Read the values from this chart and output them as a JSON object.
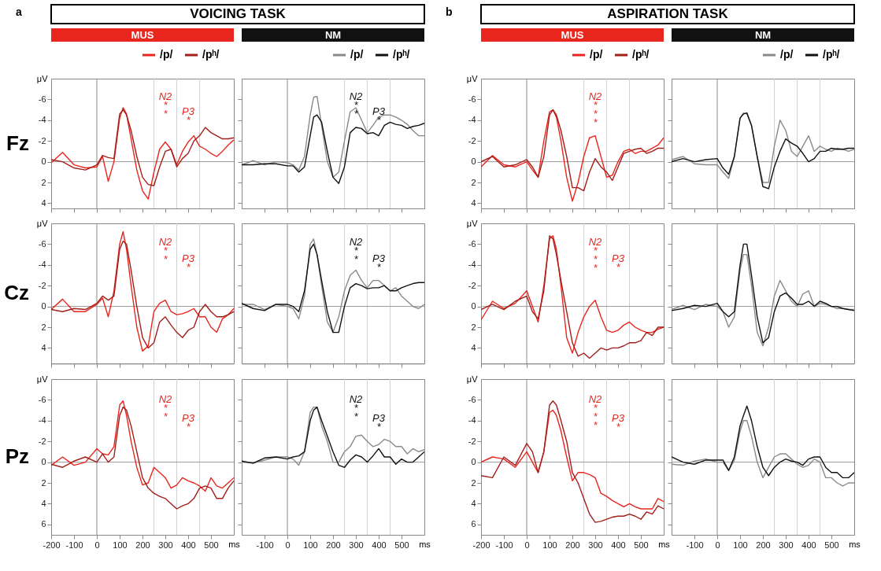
{
  "chart_data": [
    {
      "type": "line",
      "title": "VOICING TASK",
      "subtitle": "MUS",
      "ylabel": "μV",
      "legend": "top right",
      "tick_labels": "y",
      "x": [
        -200,
        -150,
        -100,
        -50,
        0,
        25,
        50,
        75,
        100,
        115,
        130,
        150,
        175,
        200,
        225,
        250,
        275,
        300,
        325,
        350,
        375,
        400,
        425,
        450,
        475,
        500,
        525,
        550,
        575,
        600
      ],
      "xlim": [
        -200,
        600
      ],
      "xticks": [
        -200,
        -100,
        0,
        100,
        200,
        300,
        400,
        500
      ],
      "ylim": [
        4.5,
        -8
      ],
      "yticks": [
        -6,
        -4,
        -2,
        0,
        2,
        4
      ],
      "ref_lines": [
        {
          "axis": "x",
          "value": 0,
          "color": "#8c8c8c"
        },
        {
          "axis": "x",
          "value": 250,
          "color": "#d0d0d0"
        },
        {
          "axis": "x",
          "value": 350,
          "color": "#d0d0d0"
        },
        {
          "axis": "x",
          "value": 450,
          "color": "#d0d0d0"
        },
        {
          "axis": "y",
          "value": 0,
          "color": "#9a9a9a"
        }
      ],
      "annotations": [
        "Fz",
        "a",
        "N2\n*\n*",
        "P3\n*"
      ],
      "series": [
        {
          "name": "/p/",
          "color": "#e8261e",
          "values": [
            0.1,
            -0.9,
            0.3,
            0.6,
            0.5,
            -0.5,
            1.9,
            0.0,
            -4.2,
            -5.2,
            -4.6,
            -2.2,
            0.8,
            2.8,
            3.6,
            1.0,
            -1.2,
            -1.9,
            -1.2,
            0.3,
            -1.0,
            -1.9,
            -2.5,
            -1.5,
            -1.2,
            -0.8,
            -0.5,
            -1.0,
            -1.6,
            -2.1
          ]
        },
        {
          "name": "/pʰ/",
          "color": "#a31f1a",
          "values": [
            -0.2,
            0.0,
            0.6,
            0.8,
            0.3,
            -0.6,
            -0.4,
            -0.3,
            -4.6,
            -5.0,
            -4.5,
            -3.0,
            -0.5,
            1.5,
            2.2,
            2.3,
            0.5,
            -1.0,
            -1.2,
            0.5,
            -0.3,
            -0.8,
            -2.0,
            -2.5,
            -3.3,
            -2.8,
            -2.5,
            -2.2,
            -2.2,
            -2.3
          ]
        }
      ]
    },
    {
      "type": "line",
      "subtitle": "NM",
      "legend": "top right",
      "tick_labels": false,
      "x": [
        -200,
        -150,
        -100,
        -50,
        0,
        25,
        50,
        75,
        100,
        115,
        130,
        150,
        175,
        200,
        225,
        250,
        275,
        300,
        325,
        350,
        375,
        400,
        425,
        450,
        475,
        500,
        525,
        550,
        575,
        600
      ],
      "xlim": [
        -200,
        600
      ],
      "xticks": [
        -100,
        0,
        100,
        200,
        300,
        400,
        500
      ],
      "ylim": [
        4.5,
        -8
      ],
      "yticks": [
        -6,
        -4,
        -2,
        0,
        2,
        4
      ],
      "ref_lines": [
        {
          "axis": "x",
          "value": 0,
          "color": "#8c8c8c"
        },
        {
          "axis": "x",
          "value": 250,
          "color": "#d0d0d0"
        },
        {
          "axis": "x",
          "value": 350,
          "color": "#d0d0d0"
        },
        {
          "axis": "x",
          "value": 450,
          "color": "#d0d0d0"
        },
        {
          "axis": "y",
          "value": 0,
          "color": "#9a9a9a"
        }
      ],
      "annotations": [
        "N2\n*\n*",
        "P3\n*"
      ],
      "series": [
        {
          "name": "/p/",
          "color": "#8a8a8a",
          "values": [
            0.3,
            -0.1,
            0.3,
            0.0,
            0.1,
            0.3,
            0.8,
            -0.5,
            -4.5,
            -6.2,
            -6.3,
            -3.5,
            0.0,
            1.5,
            1.0,
            -2.0,
            -4.8,
            -5.2,
            -4.0,
            -2.8,
            -3.5,
            -4.3,
            -4.5,
            -4.5,
            -4.3,
            -4.0,
            -3.6,
            -3.0,
            -2.5,
            -2.5
          ]
        },
        {
          "name": "/pʰ/",
          "color": "#111111",
          "values": [
            0.3,
            0.3,
            0.2,
            0.2,
            0.4,
            0.4,
            1.0,
            0.5,
            -2.5,
            -4.3,
            -4.5,
            -3.8,
            -1.0,
            1.5,
            2.1,
            0.5,
            -2.8,
            -3.3,
            -3.2,
            -2.7,
            -2.8,
            -2.5,
            -3.5,
            -3.8,
            -3.6,
            -3.5,
            -3.2,
            -3.4,
            -3.5,
            -3.7
          ]
        }
      ]
    },
    {
      "type": "line",
      "title": "ASPIRATION TASK",
      "subtitle": "MUS",
      "ylabel": "μV",
      "legend": "top right",
      "tick_labels": "y",
      "x": [
        -200,
        -150,
        -100,
        -50,
        0,
        25,
        50,
        75,
        100,
        115,
        130,
        150,
        175,
        200,
        225,
        250,
        275,
        300,
        325,
        350,
        375,
        400,
        425,
        450,
        475,
        500,
        525,
        550,
        575,
        600
      ],
      "xlim": [
        -200,
        600
      ],
      "xticks": [
        -200,
        -100,
        0,
        100,
        200,
        300,
        400,
        500
      ],
      "ylim": [
        4.5,
        -8
      ],
      "yticks": [
        -6,
        -4,
        -2,
        0,
        2,
        4
      ],
      "ref_lines": [
        {
          "axis": "x",
          "value": 0,
          "color": "#8c8c8c"
        },
        {
          "axis": "x",
          "value": 250,
          "color": "#d0d0d0"
        },
        {
          "axis": "x",
          "value": 350,
          "color": "#d0d0d0"
        },
        {
          "axis": "x",
          "value": 450,
          "color": "#d0d0d0"
        },
        {
          "axis": "y",
          "value": 0,
          "color": "#9a9a9a"
        }
      ],
      "annotations": [
        "b",
        "N2\n*\n*\n*"
      ],
      "series": [
        {
          "name": "/p/",
          "color": "#e8261e",
          "values": [
            0.5,
            -0.6,
            0.3,
            0.5,
            0.0,
            0.8,
            1.5,
            -2.0,
            -4.8,
            -5.0,
            -4.3,
            -2.0,
            1.5,
            3.8,
            2.0,
            -0.5,
            -2.3,
            -2.5,
            -0.5,
            1.5,
            1.3,
            0.0,
            -1.0,
            -1.2,
            -0.8,
            -1.0,
            -1.0,
            -1.3,
            -1.6,
            -2.3
          ]
        },
        {
          "name": "/pʰ/",
          "color": "#a31f1a",
          "values": [
            0.0,
            -0.5,
            0.5,
            0.3,
            -0.2,
            0.5,
            1.5,
            -0.5,
            -4.5,
            -5.0,
            -4.5,
            -3.0,
            -0.5,
            2.5,
            2.5,
            2.8,
            1.0,
            -0.3,
            0.5,
            1.0,
            1.8,
            0.5,
            -0.8,
            -1.0,
            -1.2,
            -1.3,
            -0.8,
            -1.0,
            -1.3,
            -1.3
          ]
        }
      ]
    },
    {
      "type": "line",
      "subtitle": "NM",
      "legend": "top right",
      "tick_labels": false,
      "x": [
        -200,
        -150,
        -100,
        -50,
        0,
        25,
        50,
        75,
        100,
        115,
        130,
        150,
        175,
        200,
        225,
        250,
        275,
        300,
        325,
        350,
        375,
        400,
        425,
        450,
        475,
        500,
        525,
        550,
        575,
        600
      ],
      "xlim": [
        -200,
        600
      ],
      "xticks": [
        -100,
        0,
        100,
        200,
        300,
        400,
        500
      ],
      "ylim": [
        4.5,
        -8
      ],
      "yticks": [
        -6,
        -4,
        -2,
        0,
        2,
        4
      ],
      "ref_lines": [
        {
          "axis": "x",
          "value": 0,
          "color": "#8c8c8c"
        },
        {
          "axis": "x",
          "value": 250,
          "color": "#d0d0d0"
        },
        {
          "axis": "x",
          "value": 350,
          "color": "#d0d0d0"
        },
        {
          "axis": "x",
          "value": 450,
          "color": "#d0d0d0"
        },
        {
          "axis": "y",
          "value": 0,
          "color": "#9a9a9a"
        }
      ],
      "series": [
        {
          "name": "/p/",
          "color": "#8a8a8a",
          "values": [
            -0.2,
            -0.5,
            0.2,
            0.3,
            0.3,
            1.0,
            1.6,
            -0.5,
            -4.2,
            -4.7,
            -4.6,
            -3.5,
            -0.5,
            2.0,
            2.0,
            -1.5,
            -4.0,
            -3.0,
            -1.0,
            -0.5,
            -1.5,
            -2.5,
            -1.0,
            -1.5,
            -1.2,
            -1.0,
            -1.3,
            -1.2,
            -1.0,
            -1.2
          ]
        },
        {
          "name": "/pʰ/",
          "color": "#111111",
          "values": [
            0.0,
            -0.3,
            0.0,
            -0.2,
            -0.3,
            0.6,
            1.2,
            -0.5,
            -4.2,
            -4.6,
            -4.7,
            -3.5,
            -0.5,
            2.4,
            2.6,
            0.5,
            -1.0,
            -2.2,
            -1.8,
            -1.5,
            -0.8,
            0.0,
            -0.3,
            -1.0,
            -1.0,
            -1.3,
            -1.2,
            -1.2,
            -1.3,
            -1.3
          ]
        }
      ]
    },
    {
      "type": "line",
      "ylabel": "μV",
      "tick_labels": "y",
      "x": [
        -200,
        -150,
        -100,
        -50,
        0,
        25,
        50,
        75,
        100,
        115,
        130,
        150,
        175,
        200,
        225,
        250,
        275,
        300,
        325,
        350,
        375,
        400,
        425,
        450,
        475,
        500,
        525,
        550,
        575,
        600
      ],
      "xlim": [
        -200,
        600
      ],
      "xticks": [
        -200,
        -100,
        0,
        100,
        200,
        300,
        400,
        500
      ],
      "ylim": [
        5.5,
        -8
      ],
      "yticks": [
        -6,
        -4,
        -2,
        0,
        2,
        4
      ],
      "ref_lines": [
        {
          "axis": "x",
          "value": 0,
          "color": "#8c8c8c"
        },
        {
          "axis": "x",
          "value": 250,
          "color": "#d0d0d0"
        },
        {
          "axis": "x",
          "value": 350,
          "color": "#d0d0d0"
        },
        {
          "axis": "x",
          "value": 450,
          "color": "#d0d0d0"
        },
        {
          "axis": "y",
          "value": 0,
          "color": "#9a9a9a"
        }
      ],
      "annotations": [
        "Cz",
        "N2\n*\n*",
        "P3\n*"
      ],
      "series": [
        {
          "color": "#e8261e",
          "values": [
            0.3,
            -0.7,
            0.5,
            0.5,
            -0.2,
            -0.8,
            1.0,
            -1.5,
            -6.0,
            -7.2,
            -5.5,
            -2.0,
            2.0,
            4.3,
            3.8,
            0.5,
            -0.3,
            -0.6,
            0.5,
            0.8,
            0.7,
            0.5,
            0.2,
            1.0,
            1.0,
            2.0,
            2.5,
            1.2,
            0.8,
            0.2
          ]
        },
        {
          "color": "#a31f1a",
          "values": [
            0.3,
            0.5,
            0.2,
            0.3,
            -0.3,
            -1.0,
            -0.6,
            -1.0,
            -5.5,
            -6.3,
            -6.0,
            -3.5,
            0.0,
            3.0,
            4.0,
            3.5,
            1.5,
            1.0,
            1.8,
            2.5,
            3.0,
            2.3,
            2.0,
            0.5,
            -0.2,
            0.5,
            1.0,
            1.0,
            0.8,
            0.5
          ]
        }
      ]
    },
    {
      "type": "line",
      "tick_labels": false,
      "x": [
        -200,
        -150,
        -100,
        -50,
        0,
        25,
        50,
        75,
        100,
        115,
        130,
        150,
        175,
        200,
        225,
        250,
        275,
        300,
        325,
        350,
        375,
        400,
        425,
        450,
        475,
        500,
        525,
        550,
        575,
        600
      ],
      "xlim": [
        -200,
        600
      ],
      "xticks": [
        -100,
        0,
        100,
        200,
        300,
        400,
        500
      ],
      "ylim": [
        5.5,
        -8
      ],
      "yticks": [
        -6,
        -4,
        -2,
        0,
        2,
        4
      ],
      "ref_lines": [
        {
          "axis": "x",
          "value": 0,
          "color": "#8c8c8c"
        },
        {
          "axis": "x",
          "value": 250,
          "color": "#d0d0d0"
        },
        {
          "axis": "x",
          "value": 350,
          "color": "#d0d0d0"
        },
        {
          "axis": "x",
          "value": 450,
          "color": "#d0d0d0"
        },
        {
          "axis": "y",
          "value": 0,
          "color": "#9a9a9a"
        }
      ],
      "annotations": [
        "N2\n*\n*",
        "P3\n*"
      ],
      "series": [
        {
          "color": "#8a8a8a",
          "values": [
            -0.2,
            -0.2,
            0.3,
            -0.2,
            0.0,
            0.2,
            1.2,
            -1.0,
            -6.0,
            -6.5,
            -5.0,
            -2.0,
            1.5,
            2.5,
            1.0,
            -1.5,
            -3.0,
            -3.5,
            -2.5,
            -1.8,
            -2.5,
            -2.5,
            -2.0,
            -1.5,
            -1.8,
            -1.0,
            -0.5,
            0.0,
            0.2,
            -0.2
          ]
        },
        {
          "color": "#111111",
          "values": [
            -0.3,
            0.2,
            0.4,
            -0.2,
            -0.2,
            0.0,
            0.5,
            -1.5,
            -5.5,
            -6.0,
            -5.0,
            -2.5,
            0.5,
            2.5,
            2.5,
            0.0,
            -1.8,
            -2.2,
            -2.0,
            -1.7,
            -1.8,
            -1.8,
            -2.0,
            -1.5,
            -1.5,
            -1.8,
            -2.0,
            -2.2,
            -2.3,
            -2.3
          ]
        }
      ]
    },
    {
      "type": "line",
      "ylabel": "μV",
      "tick_labels": "y",
      "x": [
        -200,
        -150,
        -100,
        -50,
        0,
        25,
        50,
        75,
        100,
        115,
        130,
        150,
        175,
        200,
        225,
        250,
        275,
        300,
        325,
        350,
        375,
        400,
        425,
        450,
        475,
        500,
        525,
        550,
        575,
        600
      ],
      "xlim": [
        -200,
        600
      ],
      "xticks": [
        -200,
        -100,
        0,
        100,
        200,
        300,
        400,
        500
      ],
      "ylim": [
        5.5,
        -8
      ],
      "yticks": [
        -6,
        -4,
        -2,
        0,
        2,
        4
      ],
      "ref_lines": [
        {
          "axis": "x",
          "value": 0,
          "color": "#8c8c8c"
        },
        {
          "axis": "x",
          "value": 250,
          "color": "#d0d0d0"
        },
        {
          "axis": "x",
          "value": 350,
          "color": "#d0d0d0"
        },
        {
          "axis": "x",
          "value": 450,
          "color": "#d0d0d0"
        },
        {
          "axis": "y",
          "value": 0,
          "color": "#9a9a9a"
        }
      ],
      "annotations": [
        "N2\n*\n*\n*",
        "P3\n*"
      ],
      "series": [
        {
          "color": "#e8261e",
          "values": [
            1.3,
            -0.5,
            0.2,
            -0.3,
            -1.5,
            0.0,
            1.5,
            -2.0,
            -6.5,
            -6.8,
            -5.5,
            -2.0,
            3.0,
            4.5,
            2.5,
            1.0,
            0.0,
            -0.6,
            1.0,
            2.3,
            2.5,
            2.3,
            1.8,
            1.5,
            2.0,
            2.3,
            2.5,
            2.5,
            2.2,
            2.0
          ]
        },
        {
          "color": "#a31f1a",
          "values": [
            0.3,
            -0.2,
            0.3,
            -0.5,
            -1.0,
            0.5,
            1.2,
            -1.5,
            -6.8,
            -6.5,
            -5.0,
            -2.5,
            0.5,
            3.5,
            4.8,
            4.5,
            5.0,
            4.5,
            4.0,
            4.2,
            4.0,
            4.0,
            3.8,
            3.5,
            3.5,
            3.3,
            2.5,
            2.8,
            2.0,
            2.0
          ]
        }
      ]
    },
    {
      "type": "line",
      "tick_labels": false,
      "x": [
        -200,
        -150,
        -100,
        -50,
        0,
        25,
        50,
        75,
        100,
        115,
        130,
        150,
        175,
        200,
        225,
        250,
        275,
        300,
        325,
        350,
        375,
        400,
        425,
        450,
        475,
        500,
        525,
        550,
        575,
        600
      ],
      "xlim": [
        -200,
        600
      ],
      "xticks": [
        -100,
        0,
        100,
        200,
        300,
        400,
        500
      ],
      "ylim": [
        5.5,
        -8
      ],
      "yticks": [
        -6,
        -4,
        -2,
        0,
        2,
        4
      ],
      "ref_lines": [
        {
          "axis": "x",
          "value": 0,
          "color": "#8c8c8c"
        },
        {
          "axis": "x",
          "value": 250,
          "color": "#d0d0d0"
        },
        {
          "axis": "x",
          "value": 350,
          "color": "#d0d0d0"
        },
        {
          "axis": "x",
          "value": 450,
          "color": "#d0d0d0"
        },
        {
          "axis": "y",
          "value": 0,
          "color": "#9a9a9a"
        }
      ],
      "series": [
        {
          "color": "#8a8a8a",
          "values": [
            0.3,
            -0.1,
            0.3,
            -0.2,
            0.0,
            0.5,
            2.0,
            1.0,
            -3.5,
            -5.0,
            -5.0,
            -2.0,
            2.5,
            3.8,
            2.0,
            -1.0,
            -2.5,
            -1.5,
            -0.5,
            0.0,
            -1.2,
            -1.5,
            0.0,
            -0.3,
            -0.2,
            0.0,
            0.2,
            0.2,
            0.3,
            0.3
          ]
        },
        {
          "color": "#111111",
          "values": [
            0.4,
            0.2,
            -0.1,
            0.0,
            -0.3,
            0.5,
            1.0,
            0.5,
            -4.0,
            -6.0,
            -6.0,
            -3.0,
            1.0,
            3.5,
            3.0,
            0.5,
            -1.0,
            -1.3,
            -0.8,
            -0.2,
            -0.2,
            -0.5,
            0.0,
            -0.5,
            -0.3,
            0.0,
            0.0,
            0.2,
            0.3,
            0.4
          ]
        }
      ]
    },
    {
      "type": "line",
      "ylabel": "μV",
      "xlabel": "ms",
      "x": [
        -200,
        -150,
        -100,
        -50,
        0,
        25,
        50,
        75,
        100,
        115,
        130,
        150,
        175,
        200,
        225,
        250,
        275,
        300,
        325,
        350,
        375,
        400,
        425,
        450,
        475,
        500,
        525,
        550,
        575,
        600
      ],
      "xlim": [
        -200,
        600
      ],
      "xticks": [
        -200,
        -100,
        0,
        100,
        200,
        300,
        400,
        500
      ],
      "ylim": [
        7,
        -8
      ],
      "yticks": [
        -6,
        -4,
        -2,
        0,
        2,
        4,
        6
      ],
      "ref_lines": [
        {
          "axis": "x",
          "value": 0,
          "color": "#8c8c8c"
        },
        {
          "axis": "x",
          "value": 250,
          "color": "#d0d0d0"
        },
        {
          "axis": "x",
          "value": 350,
          "color": "#d0d0d0"
        },
        {
          "axis": "x",
          "value": 450,
          "color": "#d0d0d0"
        },
        {
          "axis": "y",
          "value": 0,
          "color": "#9a9a9a"
        }
      ],
      "annotations": [
        "Pz",
        "N2\n*\n*",
        "P3\n*"
      ],
      "series": [
        {
          "color": "#e8261e",
          "values": [
            0.3,
            -0.5,
            0.3,
            0.0,
            -1.3,
            -0.8,
            -0.7,
            -1.5,
            -5.5,
            -5.9,
            -4.5,
            -2.0,
            0.5,
            2.2,
            2.0,
            0.5,
            1.0,
            1.5,
            2.5,
            2.2,
            1.5,
            1.8,
            2.0,
            2.3,
            2.8,
            1.5,
            2.3,
            2.5,
            2.0,
            1.5
          ]
        },
        {
          "color": "#a31f1a",
          "values": [
            0.2,
            0.5,
            -0.1,
            -0.5,
            0.0,
            -0.8,
            0.0,
            -0.5,
            -4.5,
            -5.3,
            -5.0,
            -3.5,
            -1.0,
            1.5,
            2.5,
            3.0,
            3.3,
            3.5,
            4.0,
            4.5,
            4.2,
            4.0,
            3.5,
            2.5,
            2.3,
            2.5,
            3.5,
            3.5,
            2.5,
            1.8
          ]
        }
      ]
    },
    {
      "type": "line",
      "tick_labels": "x",
      "xlabel": "ms",
      "x": [
        -200,
        -150,
        -100,
        -50,
        0,
        25,
        50,
        75,
        100,
        115,
        130,
        150,
        175,
        200,
        225,
        250,
        275,
        300,
        325,
        350,
        375,
        400,
        425,
        450,
        475,
        500,
        525,
        550,
        575,
        600
      ],
      "xlim": [
        -200,
        600
      ],
      "xticks": [
        -100,
        0,
        100,
        200,
        300,
        400,
        500
      ],
      "ylim": [
        7,
        -8
      ],
      "yticks": [
        -6,
        -4,
        -2,
        0,
        2,
        4,
        6
      ],
      "ref_lines": [
        {
          "axis": "x",
          "value": 0,
          "color": "#8c8c8c"
        },
        {
          "axis": "x",
          "value": 250,
          "color": "#d0d0d0"
        },
        {
          "axis": "x",
          "value": 350,
          "color": "#d0d0d0"
        },
        {
          "axis": "x",
          "value": 450,
          "color": "#d0d0d0"
        },
        {
          "axis": "y",
          "value": 0,
          "color": "#9a9a9a"
        }
      ],
      "annotations": [
        "N2\n*\n*",
        "P3\n*"
      ],
      "series": [
        {
          "color": "#8a8a8a",
          "values": [
            0.0,
            0.1,
            -0.2,
            -0.5,
            -0.5,
            -0.3,
            0.3,
            -1.0,
            -4.8,
            -5.3,
            -5.3,
            -3.5,
            -2.0,
            0.0,
            0.0,
            -1.0,
            -1.5,
            -2.5,
            -2.6,
            -2.0,
            -1.5,
            -1.7,
            -2.2,
            -2.0,
            -1.5,
            -1.5,
            -0.8,
            -1.3,
            -1.0,
            -1.2
          ]
        },
        {
          "color": "#111111",
          "values": [
            -0.1,
            0.1,
            -0.4,
            -0.5,
            -0.3,
            -0.5,
            -0.6,
            -1.0,
            -4.0,
            -5.0,
            -5.3,
            -4.0,
            -2.5,
            -1.0,
            0.3,
            0.5,
            -0.2,
            -0.7,
            -0.5,
            0.0,
            -0.6,
            -1.3,
            -0.5,
            -0.5,
            0.2,
            -0.3,
            0.0,
            0.0,
            -0.5,
            -1.0
          ]
        }
      ]
    },
    {
      "type": "line",
      "ylabel": "μV",
      "xlabel": "ms",
      "x": [
        -200,
        -150,
        -100,
        -50,
        0,
        25,
        50,
        75,
        100,
        115,
        130,
        150,
        175,
        200,
        225,
        250,
        275,
        300,
        325,
        350,
        375,
        400,
        425,
        450,
        475,
        500,
        525,
        550,
        575,
        600
      ],
      "xlim": [
        -200,
        600
      ],
      "xticks": [
        -200,
        -100,
        0,
        100,
        200,
        300,
        400,
        500
      ],
      "ylim": [
        7,
        -8
      ],
      "yticks": [
        -6,
        -4,
        -2,
        0,
        2,
        4,
        6
      ],
      "ref_lines": [
        {
          "axis": "x",
          "value": 0,
          "color": "#8c8c8c"
        },
        {
          "axis": "x",
          "value": 250,
          "color": "#d0d0d0"
        },
        {
          "axis": "x",
          "value": 350,
          "color": "#d0d0d0"
        },
        {
          "axis": "x",
          "value": 450,
          "color": "#d0d0d0"
        },
        {
          "axis": "y",
          "value": 0,
          "color": "#9a9a9a"
        }
      ],
      "annotations": [
        "N2\n*\n*\n*",
        "P3\n*"
      ],
      "series": [
        {
          "color": "#e8261e",
          "values": [
            0.0,
            -0.5,
            -0.3,
            0.5,
            -1.0,
            0.0,
            1.0,
            -1.0,
            -4.8,
            -5.0,
            -4.5,
            -3.0,
            -0.5,
            1.8,
            1.0,
            1.0,
            1.2,
            1.5,
            3.0,
            3.3,
            3.7,
            4.0,
            4.3,
            4.0,
            4.3,
            4.5,
            4.5,
            4.5,
            3.5,
            3.8
          ]
        },
        {
          "color": "#a31f1a",
          "values": [
            1.3,
            1.5,
            -0.5,
            0.3,
            -1.8,
            -1.0,
            1.0,
            -1.0,
            -5.5,
            -5.9,
            -5.5,
            -4.0,
            -2.0,
            1.0,
            2.0,
            3.5,
            5.0,
            5.8,
            5.7,
            5.5,
            5.3,
            5.2,
            5.2,
            5.0,
            5.2,
            5.5,
            4.8,
            5.0,
            4.2,
            4.5
          ]
        }
      ]
    },
    {
      "type": "line",
      "tick_labels": "x",
      "xlabel": "ms",
      "x": [
        -200,
        -150,
        -100,
        -50,
        0,
        25,
        50,
        75,
        100,
        115,
        130,
        150,
        175,
        200,
        225,
        250,
        275,
        300,
        325,
        350,
        375,
        400,
        425,
        450,
        475,
        500,
        525,
        550,
        575,
        600
      ],
      "xlim": [
        -200,
        600
      ],
      "xticks": [
        -100,
        0,
        100,
        200,
        300,
        400,
        500
      ],
      "ylim": [
        7,
        -8
      ],
      "yticks": [
        -6,
        -4,
        -2,
        0,
        2,
        4,
        6
      ],
      "ref_lines": [
        {
          "axis": "x",
          "value": 0,
          "color": "#8c8c8c"
        },
        {
          "axis": "x",
          "value": 250,
          "color": "#d0d0d0"
        },
        {
          "axis": "x",
          "value": 350,
          "color": "#d0d0d0"
        },
        {
          "axis": "x",
          "value": 450,
          "color": "#d0d0d0"
        },
        {
          "axis": "y",
          "value": 0,
          "color": "#9a9a9a"
        }
      ],
      "series": [
        {
          "color": "#8a8a8a",
          "values": [
            0.2,
            0.3,
            -0.1,
            -0.3,
            0.0,
            0.0,
            0.8,
            -0.2,
            -3.0,
            -4.0,
            -4.0,
            -2.5,
            0.0,
            1.5,
            0.5,
            -0.5,
            -0.8,
            -0.8,
            -0.3,
            0.2,
            0.5,
            0.3,
            -0.3,
            0.0,
            1.5,
            1.5,
            2.0,
            2.3,
            2.0,
            2.0
          ]
        },
        {
          "color": "#111111",
          "values": [
            -0.5,
            0.0,
            0.2,
            -0.2,
            -0.2,
            -0.2,
            0.8,
            -0.5,
            -3.5,
            -4.5,
            -5.4,
            -4.0,
            -1.5,
            0.5,
            1.3,
            0.5,
            0.0,
            -0.3,
            -0.1,
            0.0,
            0.3,
            -0.3,
            -0.5,
            -0.5,
            0.5,
            1.0,
            1.0,
            1.5,
            1.5,
            1.0
          ]
        }
      ]
    }
  ]
}
